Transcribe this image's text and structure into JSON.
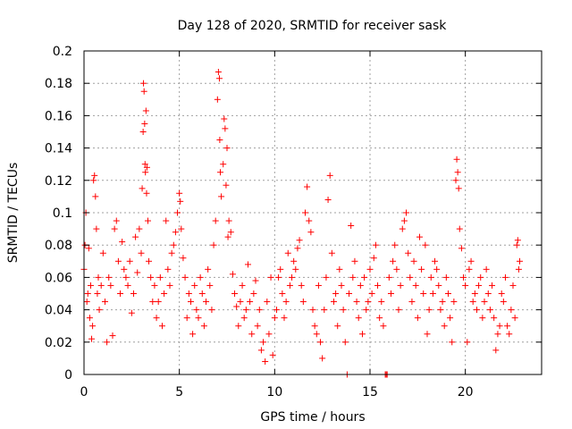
{
  "chart_data": {
    "type": "scatter",
    "title": "Day 128 of 2020, SRMTID for receiver sask",
    "xlabel": "GPS time / hours",
    "ylabel": "SRMTID / TECUs",
    "xlim": [
      0,
      24
    ],
    "ylim": [
      0,
      0.2
    ],
    "xticks": [
      0,
      5,
      10,
      15,
      20
    ],
    "xtick_labels": [
      "0",
      "5",
      "10",
      "15",
      "20"
    ],
    "yticks": [
      0,
      0.02,
      0.04,
      0.06,
      0.08,
      0.1,
      0.12,
      0.14,
      0.16,
      0.18,
      0.2
    ],
    "ytick_labels": [
      "0",
      "0.02",
      "0.04",
      "0.06",
      "0.08",
      "0.1",
      "0.12",
      "0.14",
      "0.16",
      "0.18",
      "0.2"
    ],
    "grid": true,
    "marker": "+",
    "color": "#ff0000",
    "series": [
      {
        "name": "SRMTID",
        "points": [
          [
            0.0,
            0.065
          ],
          [
            0.05,
            0.08
          ],
          [
            0.1,
            0.1
          ],
          [
            0.15,
            0.045
          ],
          [
            0.2,
            0.05
          ],
          [
            0.25,
            0.078
          ],
          [
            0.3,
            0.035
          ],
          [
            0.35,
            0.055
          ],
          [
            0.4,
            0.022
          ],
          [
            0.45,
            0.03
          ],
          [
            0.5,
            0.12
          ],
          [
            0.55,
            0.123
          ],
          [
            0.6,
            0.11
          ],
          [
            0.65,
            0.09
          ],
          [
            0.7,
            0.05
          ],
          [
            0.75,
            0.06
          ],
          [
            0.8,
            0.04
          ],
          [
            0.9,
            0.055
          ],
          [
            1.0,
            0.075
          ],
          [
            1.1,
            0.045
          ],
          [
            1.2,
            0.02
          ],
          [
            1.3,
            0.06
          ],
          [
            1.4,
            0.055
          ],
          [
            1.5,
            0.024
          ],
          [
            1.6,
            0.09
          ],
          [
            1.7,
            0.095
          ],
          [
            1.8,
            0.07
          ],
          [
            1.9,
            0.05
          ],
          [
            2.0,
            0.082
          ],
          [
            2.1,
            0.065
          ],
          [
            2.2,
            0.06
          ],
          [
            2.3,
            0.055
          ],
          [
            2.4,
            0.07
          ],
          [
            2.5,
            0.038
          ],
          [
            2.6,
            0.05
          ],
          [
            2.7,
            0.085
          ],
          [
            2.8,
            0.063
          ],
          [
            2.9,
            0.09
          ],
          [
            3.0,
            0.075
          ],
          [
            3.05,
            0.115
          ],
          [
            3.1,
            0.15
          ],
          [
            3.12,
            0.18
          ],
          [
            3.15,
            0.175
          ],
          [
            3.18,
            0.155
          ],
          [
            3.2,
            0.13
          ],
          [
            3.22,
            0.125
          ],
          [
            3.25,
            0.163
          ],
          [
            3.28,
            0.112
          ],
          [
            3.3,
            0.128
          ],
          [
            3.35,
            0.095
          ],
          [
            3.4,
            0.07
          ],
          [
            3.5,
            0.06
          ],
          [
            3.6,
            0.045
          ],
          [
            3.7,
            0.055
          ],
          [
            3.8,
            0.035
          ],
          [
            3.9,
            0.045
          ],
          [
            4.0,
            0.06
          ],
          [
            4.1,
            0.03
          ],
          [
            4.2,
            0.05
          ],
          [
            4.3,
            0.095
          ],
          [
            4.4,
            0.065
          ],
          [
            4.5,
            0.055
          ],
          [
            4.6,
            0.075
          ],
          [
            4.7,
            0.08
          ],
          [
            4.8,
            0.088
          ],
          [
            4.9,
            0.1
          ],
          [
            5.0,
            0.112
          ],
          [
            5.05,
            0.107
          ],
          [
            5.1,
            0.09
          ],
          [
            5.2,
            0.072
          ],
          [
            5.3,
            0.06
          ],
          [
            5.4,
            0.035
          ],
          [
            5.5,
            0.05
          ],
          [
            5.6,
            0.045
          ],
          [
            5.7,
            0.025
          ],
          [
            5.8,
            0.055
          ],
          [
            5.9,
            0.04
          ],
          [
            6.0,
            0.035
          ],
          [
            6.1,
            0.06
          ],
          [
            6.2,
            0.05
          ],
          [
            6.3,
            0.03
          ],
          [
            6.4,
            0.045
          ],
          [
            6.5,
            0.065
          ],
          [
            6.6,
            0.055
          ],
          [
            6.7,
            0.04
          ],
          [
            6.8,
            0.08
          ],
          [
            6.9,
            0.095
          ],
          [
            7.0,
            0.17
          ],
          [
            7.05,
            0.187
          ],
          [
            7.1,
            0.183
          ],
          [
            7.12,
            0.145
          ],
          [
            7.15,
            0.125
          ],
          [
            7.2,
            0.11
          ],
          [
            7.3,
            0.13
          ],
          [
            7.35,
            0.158
          ],
          [
            7.4,
            0.152
          ],
          [
            7.45,
            0.117
          ],
          [
            7.5,
            0.14
          ],
          [
            7.55,
            0.085
          ],
          [
            7.6,
            0.095
          ],
          [
            7.7,
            0.088
          ],
          [
            7.8,
            0.062
          ],
          [
            7.9,
            0.05
          ],
          [
            8.0,
            0.042
          ],
          [
            8.1,
            0.03
          ],
          [
            8.2,
            0.045
          ],
          [
            8.3,
            0.055
          ],
          [
            8.4,
            0.035
          ],
          [
            8.5,
            0.04
          ],
          [
            8.6,
            0.068
          ],
          [
            8.7,
            0.045
          ],
          [
            8.8,
            0.025
          ],
          [
            8.9,
            0.05
          ],
          [
            9.0,
            0.058
          ],
          [
            9.1,
            0.03
          ],
          [
            9.2,
            0.04
          ],
          [
            9.3,
            0.015
          ],
          [
            9.4,
            0.02
          ],
          [
            9.5,
            0.008
          ],
          [
            9.6,
            0.045
          ],
          [
            9.7,
            0.025
          ],
          [
            9.8,
            0.06
          ],
          [
            9.9,
            0.012
          ],
          [
            10.0,
            0.035
          ],
          [
            10.1,
            0.04
          ],
          [
            10.2,
            0.06
          ],
          [
            10.3,
            0.065
          ],
          [
            10.4,
            0.05
          ],
          [
            10.5,
            0.035
          ],
          [
            10.6,
            0.045
          ],
          [
            10.7,
            0.075
          ],
          [
            10.8,
            0.055
          ],
          [
            10.9,
            0.06
          ],
          [
            11.0,
            0.07
          ],
          [
            11.1,
            0.065
          ],
          [
            11.2,
            0.078
          ],
          [
            11.3,
            0.083
          ],
          [
            11.4,
            0.055
          ],
          [
            11.5,
            0.045
          ],
          [
            11.6,
            0.1
          ],
          [
            11.7,
            0.116
          ],
          [
            11.8,
            0.095
          ],
          [
            11.9,
            0.088
          ],
          [
            12.0,
            0.04
          ],
          [
            12.1,
            0.03
          ],
          [
            12.2,
            0.025
          ],
          [
            12.3,
            0.055
          ],
          [
            12.4,
            0.02
          ],
          [
            12.5,
            0.01
          ],
          [
            12.6,
            0.04
          ],
          [
            12.7,
            0.06
          ],
          [
            12.8,
            0.108
          ],
          [
            12.9,
            0.123
          ],
          [
            13.0,
            0.075
          ],
          [
            13.1,
            0.045
          ],
          [
            13.2,
            0.05
          ],
          [
            13.3,
            0.03
          ],
          [
            13.4,
            0.065
          ],
          [
            13.5,
            0.055
          ],
          [
            13.6,
            0.04
          ],
          [
            13.7,
            0.02
          ],
          [
            13.8,
            0.0
          ],
          [
            13.9,
            0.05
          ],
          [
            14.0,
            0.092
          ],
          [
            14.1,
            0.06
          ],
          [
            14.2,
            0.07
          ],
          [
            14.3,
            0.045
          ],
          [
            14.4,
            0.035
          ],
          [
            14.5,
            0.055
          ],
          [
            14.6,
            0.025
          ],
          [
            14.7,
            0.06
          ],
          [
            14.8,
            0.04
          ],
          [
            14.9,
            0.045
          ],
          [
            15.0,
            0.065
          ],
          [
            15.1,
            0.05
          ],
          [
            15.2,
            0.072
          ],
          [
            15.3,
            0.08
          ],
          [
            15.4,
            0.055
          ],
          [
            15.5,
            0.035
          ],
          [
            15.6,
            0.045
          ],
          [
            15.7,
            0.03
          ],
          [
            15.8,
            0.0
          ],
          [
            15.85,
            0.0
          ],
          [
            15.9,
            0.0
          ],
          [
            16.0,
            0.06
          ],
          [
            16.1,
            0.05
          ],
          [
            16.2,
            0.07
          ],
          [
            16.3,
            0.08
          ],
          [
            16.4,
            0.065
          ],
          [
            16.5,
            0.04
          ],
          [
            16.6,
            0.055
          ],
          [
            16.7,
            0.09
          ],
          [
            16.8,
            0.095
          ],
          [
            16.9,
            0.1
          ],
          [
            17.0,
            0.075
          ],
          [
            17.1,
            0.06
          ],
          [
            17.2,
            0.045
          ],
          [
            17.3,
            0.07
          ],
          [
            17.4,
            0.055
          ],
          [
            17.5,
            0.035
          ],
          [
            17.6,
            0.085
          ],
          [
            17.7,
            0.065
          ],
          [
            17.8,
            0.05
          ],
          [
            17.9,
            0.08
          ],
          [
            18.0,
            0.025
          ],
          [
            18.1,
            0.04
          ],
          [
            18.2,
            0.06
          ],
          [
            18.3,
            0.05
          ],
          [
            18.4,
            0.07
          ],
          [
            18.5,
            0.065
          ],
          [
            18.6,
            0.055
          ],
          [
            18.7,
            0.04
          ],
          [
            18.8,
            0.045
          ],
          [
            18.9,
            0.03
          ],
          [
            19.0,
            0.06
          ],
          [
            19.1,
            0.05
          ],
          [
            19.2,
            0.035
          ],
          [
            19.3,
            0.02
          ],
          [
            19.4,
            0.045
          ],
          [
            19.5,
            0.12
          ],
          [
            19.55,
            0.133
          ],
          [
            19.6,
            0.125
          ],
          [
            19.65,
            0.115
          ],
          [
            19.7,
            0.09
          ],
          [
            19.8,
            0.078
          ],
          [
            19.9,
            0.06
          ],
          [
            20.0,
            0.055
          ],
          [
            20.1,
            0.02
          ],
          [
            20.2,
            0.065
          ],
          [
            20.3,
            0.07
          ],
          [
            20.4,
            0.045
          ],
          [
            20.5,
            0.05
          ],
          [
            20.6,
            0.04
          ],
          [
            20.7,
            0.055
          ],
          [
            20.8,
            0.06
          ],
          [
            20.9,
            0.035
          ],
          [
            21.0,
            0.045
          ],
          [
            21.1,
            0.065
          ],
          [
            21.2,
            0.05
          ],
          [
            21.3,
            0.04
          ],
          [
            21.4,
            0.055
          ],
          [
            21.5,
            0.035
          ],
          [
            21.6,
            0.015
          ],
          [
            21.7,
            0.025
          ],
          [
            21.8,
            0.03
          ],
          [
            21.9,
            0.05
          ],
          [
            22.0,
            0.045
          ],
          [
            22.1,
            0.06
          ],
          [
            22.2,
            0.03
          ],
          [
            22.3,
            0.025
          ],
          [
            22.4,
            0.04
          ],
          [
            22.5,
            0.055
          ],
          [
            22.6,
            0.035
          ],
          [
            22.7,
            0.08
          ],
          [
            22.75,
            0.083
          ],
          [
            22.8,
            0.065
          ],
          [
            22.85,
            0.07
          ]
        ]
      }
    ]
  }
}
